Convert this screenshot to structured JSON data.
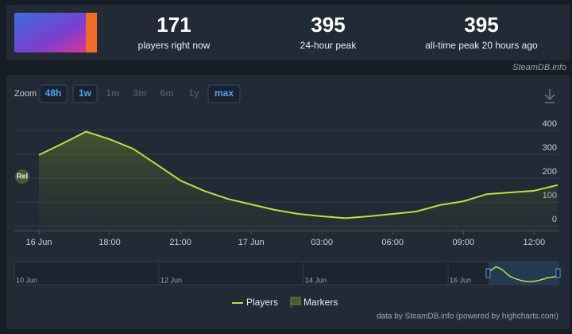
{
  "header": {
    "stats": [
      {
        "value": "171",
        "label": "players right now"
      },
      {
        "value": "395",
        "label": "24-hour peak"
      },
      {
        "value": "395",
        "label": "all-time peak 20 hours ago"
      }
    ],
    "source": "SteamDB.info"
  },
  "zoom": {
    "label": "Zoom",
    "buttons": [
      "48h",
      "1w",
      "1m",
      "3m",
      "6m",
      "1y",
      "max"
    ],
    "enabled": [
      true,
      true,
      false,
      false,
      false,
      false,
      true
    ]
  },
  "chart_data": {
    "type": "line",
    "x": [
      "16 Jun 15:00",
      "16 Jun 16:00",
      "16 Jun 17:00",
      "16 Jun 18:00",
      "16 Jun 19:00",
      "16 Jun 20:00",
      "16 Jun 21:00",
      "16 Jun 22:00",
      "16 Jun 23:00",
      "17 Jun 00:00",
      "17 Jun 01:00",
      "17 Jun 02:00",
      "17 Jun 03:00",
      "17 Jun 04:00",
      "17 Jun 05:00",
      "17 Jun 06:00",
      "17 Jun 07:00",
      "17 Jun 08:00",
      "17 Jun 09:00",
      "17 Jun 10:00",
      "17 Jun 11:00",
      "17 Jun 12:00",
      "17 Jun 13:00"
    ],
    "series": [
      {
        "name": "Players",
        "color": "#c2dc45",
        "values": [
          297,
          345,
          395,
          363,
          323,
          257,
          190,
          147,
          113,
          90,
          67,
          50,
          40,
          32,
          40,
          50,
          60,
          87,
          103,
          133,
          140,
          147,
          171
        ]
      }
    ],
    "ylim": [
      -20,
      480
    ],
    "yticks": [
      0,
      100,
      200,
      300,
      400
    ],
    "xticks": [
      {
        "value": "16 Jun 15:00",
        "label": "16 Jun"
      },
      {
        "value": "16 Jun 18:00",
        "label": "18:00"
      },
      {
        "value": "16 Jun 21:00",
        "label": "21:00"
      },
      {
        "value": "17 Jun 00:00",
        "label": "17 Jun"
      },
      {
        "value": "17 Jun 03:00",
        "label": "03:00"
      },
      {
        "value": "17 Jun 06:00",
        "label": "06:00"
      },
      {
        "value": "17 Jun 09:00",
        "label": "09:00"
      },
      {
        "value": "17 Jun 12:00",
        "label": "12:00"
      }
    ],
    "grid": true,
    "annotation": "Rel",
    "marker_legend": "Markers",
    "navigator_labels": [
      "10 Jun",
      "12 Jun",
      "14 Jun",
      "16 Jun"
    ],
    "credits": "data by SteamDB.info (powered by highcharts.com)"
  }
}
